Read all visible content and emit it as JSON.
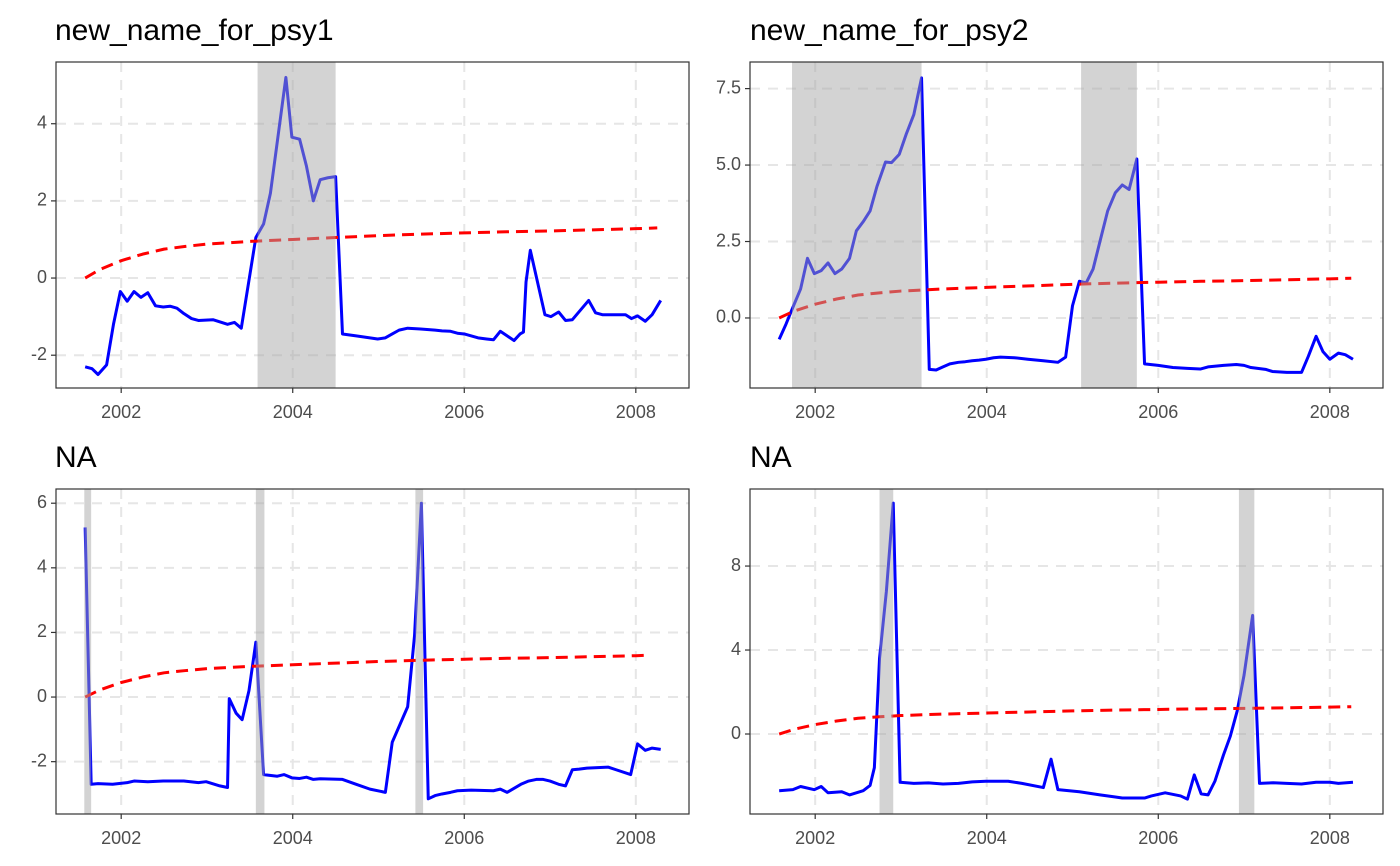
{
  "chart_data": [
    {
      "type": "line",
      "title": "new_name_for_psy1",
      "xlim": [
        2001.24,
        2008.62
      ],
      "xticks": [
        2002,
        2004,
        2006,
        2008
      ],
      "ylim": [
        -2.85,
        5.6
      ],
      "yticks": [
        -2,
        0,
        2,
        4
      ],
      "grid": true,
      "shaded_periods": [
        [
          2003.59,
          2004.5
        ]
      ],
      "series": [
        {
          "color": "#0000ff",
          "linestyle": "solid",
          "x": [
            2001.58,
            2001.66,
            2001.73,
            2001.83,
            2001.91,
            2001.99,
            2002.07,
            2002.15,
            2002.23,
            2002.31,
            2002.4,
            2002.49,
            2002.57,
            2002.65,
            2002.73,
            2002.82,
            2002.9,
            2003.07,
            2003.24,
            2003.32,
            2003.4,
            2003.57,
            2003.66,
            2003.74,
            2003.92,
            2003.99,
            2004.08,
            2004.16,
            2004.24,
            2004.32,
            2004.41,
            2004.5,
            2004.58,
            2004.74,
            2004.9,
            2004.99,
            2005.08,
            2005.16,
            2005.24,
            2005.34,
            2005.49,
            2005.66,
            2005.74,
            2005.84,
            2005.92,
            2006.0,
            2006.16,
            2006.26,
            2006.34,
            2006.42,
            2006.5,
            2006.58,
            2006.65,
            2006.69,
            2006.72,
            2006.77,
            2006.94,
            2007.01,
            2007.1,
            2007.18,
            2007.26,
            2007.45,
            2007.53,
            2007.61,
            2007.88,
            2007.95,
            2008.02,
            2008.11,
            2008.19,
            2008.29
          ],
          "values": [
            -2.3,
            -2.35,
            -2.5,
            -2.25,
            -1.2,
            -0.35,
            -0.6,
            -0.35,
            -0.5,
            -0.38,
            -0.72,
            -0.75,
            -0.73,
            -0.78,
            -0.92,
            -1.05,
            -1.1,
            -1.08,
            -1.2,
            -1.15,
            -1.3,
            1.05,
            1.4,
            2.2,
            5.2,
            3.65,
            3.6,
            2.9,
            2.0,
            2.55,
            2.6,
            2.63,
            -1.45,
            -1.5,
            -1.55,
            -1.58,
            -1.55,
            -1.45,
            -1.35,
            -1.3,
            -1.32,
            -1.35,
            -1.37,
            -1.38,
            -1.43,
            -1.45,
            -1.55,
            -1.58,
            -1.6,
            -1.38,
            -1.5,
            -1.62,
            -1.45,
            -1.4,
            -0.1,
            0.72,
            -0.95,
            -1.0,
            -0.88,
            -1.1,
            -1.08,
            -0.58,
            -0.9,
            -0.95,
            -0.95,
            -1.05,
            -0.98,
            -1.12,
            -0.95,
            -0.58
          ]
        },
        {
          "color": "#ff0000",
          "linestyle": "dashed",
          "x": [
            2001.58,
            2001.75,
            2002,
            2002.25,
            2002.5,
            2002.75,
            2003,
            2003.5,
            2004,
            2004.5,
            2005,
            2005.5,
            2006,
            2006.5,
            2007,
            2007.5,
            2008,
            2008.25
          ],
          "values": [
            0,
            0.22,
            0.45,
            0.62,
            0.75,
            0.82,
            0.88,
            0.95,
            1.0,
            1.05,
            1.1,
            1.14,
            1.17,
            1.2,
            1.22,
            1.25,
            1.28,
            1.3
          ]
        }
      ]
    },
    {
      "type": "line",
      "title": "new_name_for_psy2",
      "xlim": [
        2001.24,
        2008.62
      ],
      "xticks": [
        2002,
        2004,
        2006,
        2008
      ],
      "ylim": [
        -2.29,
        8.37
      ],
      "yticks": [
        {
          "value": 0,
          "label": "0.0"
        },
        2.5,
        {
          "value": 5,
          "label": "5.0"
        },
        7.5
      ],
      "grid": true,
      "shaded_periods": [
        [
          2001.73,
          2003.24
        ],
        [
          2005.1,
          2005.75
        ]
      ],
      "series": [
        {
          "color": "#0000ff",
          "linestyle": "solid",
          "x": [
            2001.58,
            2001.66,
            2001.74,
            2001.83,
            2001.91,
            2001.99,
            2002.07,
            2002.15,
            2002.23,
            2002.31,
            2002.4,
            2002.48,
            2002.56,
            2002.64,
            2002.72,
            2002.82,
            2002.89,
            2002.98,
            2003.06,
            2003.15,
            2003.24,
            2003.33,
            2003.41,
            2003.49,
            2003.57,
            2003.67,
            2003.75,
            2003.83,
            2003.91,
            2003.99,
            2004.08,
            2004.16,
            2004.32,
            2004.48,
            2004.66,
            2004.83,
            2004.92,
            2005.0,
            2005.08,
            2005.16,
            2005.24,
            2005.32,
            2005.41,
            2005.5,
            2005.58,
            2005.66,
            2005.75,
            2005.84,
            2006.0,
            2006.17,
            2006.34,
            2006.49,
            2006.58,
            2006.76,
            2006.91,
            2007.0,
            2007.08,
            2007.25,
            2007.33,
            2007.5,
            2007.67,
            2007.75,
            2007.84,
            2007.92,
            2008.0,
            2008.1,
            2008.18,
            2008.27
          ],
          "values": [
            -0.7,
            -0.2,
            0.35,
            0.95,
            1.95,
            1.45,
            1.55,
            1.8,
            1.45,
            1.6,
            1.95,
            2.85,
            3.15,
            3.5,
            4.3,
            5.1,
            5.08,
            5.35,
            6.0,
            6.65,
            7.85,
            -1.68,
            -1.7,
            -1.6,
            -1.5,
            -1.45,
            -1.43,
            -1.4,
            -1.38,
            -1.35,
            -1.3,
            -1.28,
            -1.3,
            -1.35,
            -1.4,
            -1.45,
            -1.28,
            0.4,
            1.2,
            1.15,
            1.6,
            2.5,
            3.5,
            4.1,
            4.35,
            4.2,
            5.2,
            -1.5,
            -1.55,
            -1.62,
            -1.65,
            -1.67,
            -1.6,
            -1.55,
            -1.52,
            -1.55,
            -1.62,
            -1.68,
            -1.75,
            -1.78,
            -1.78,
            -1.25,
            -0.6,
            -1.1,
            -1.35,
            -1.15,
            -1.2,
            -1.35
          ]
        },
        {
          "color": "#ff0000",
          "linestyle": "dashed",
          "x": [
            2001.58,
            2001.75,
            2002,
            2002.25,
            2002.5,
            2002.75,
            2003,
            2003.5,
            2004,
            2004.5,
            2005,
            2005.5,
            2006,
            2006.5,
            2007,
            2007.5,
            2008,
            2008.25
          ],
          "values": [
            0,
            0.22,
            0.45,
            0.62,
            0.75,
            0.82,
            0.88,
            0.95,
            1.0,
            1.05,
            1.1,
            1.14,
            1.17,
            1.2,
            1.22,
            1.25,
            1.28,
            1.3
          ]
        }
      ]
    },
    {
      "type": "line",
      "title": "NA",
      "xlim": [
        2001.24,
        2008.62
      ],
      "xticks": [
        2002,
        2004,
        2006,
        2008
      ],
      "ylim": [
        -3.62,
        6.44
      ],
      "yticks": [
        -2,
        0,
        2,
        4,
        6
      ],
      "grid": true,
      "shaded_periods": [
        [
          2001.57,
          2001.65
        ],
        [
          2003.57,
          2003.67
        ],
        [
          2005.43,
          2005.52
        ]
      ],
      "series": [
        {
          "color": "#0000ff",
          "linestyle": "solid",
          "x": [
            2001.58,
            2001.65,
            2001.73,
            2001.9,
            2002.07,
            2002.15,
            2002.31,
            2002.49,
            2002.73,
            2002.9,
            2002.99,
            2003.15,
            2003.24,
            2003.26,
            2003.34,
            2003.41,
            2003.49,
            2003.57,
            2003.66,
            2003.82,
            2003.9,
            2003.99,
            2004.08,
            2004.16,
            2004.24,
            2004.32,
            2004.58,
            2004.74,
            2004.9,
            2005.08,
            2005.16,
            2005.34,
            2005.42,
            2005.5,
            2005.58,
            2005.66,
            2005.74,
            2005.84,
            2005.92,
            2006.08,
            2006.34,
            2006.42,
            2006.5,
            2006.66,
            2006.75,
            2006.84,
            2006.92,
            2007.0,
            2007.1,
            2007.18,
            2007.26,
            2007.34,
            2007.43,
            2007.68,
            2007.77,
            2007.94,
            2008.02,
            2008.11,
            2008.19,
            2008.29
          ],
          "values": [
            5.25,
            -2.7,
            -2.68,
            -2.7,
            -2.65,
            -2.6,
            -2.62,
            -2.6,
            -2.6,
            -2.65,
            -2.62,
            -2.75,
            -2.8,
            -0.05,
            -0.5,
            -0.7,
            0.2,
            1.7,
            -2.4,
            -2.45,
            -2.4,
            -2.5,
            -2.52,
            -2.48,
            -2.55,
            -2.53,
            -2.55,
            -2.7,
            -2.85,
            -2.95,
            -1.4,
            -0.3,
            1.9,
            6.0,
            -3.15,
            -3.05,
            -3.0,
            -2.95,
            -2.9,
            -2.88,
            -2.9,
            -2.85,
            -2.95,
            -2.7,
            -2.6,
            -2.55,
            -2.55,
            -2.6,
            -2.7,
            -2.75,
            -2.25,
            -2.23,
            -2.2,
            -2.17,
            -2.25,
            -2.4,
            -1.45,
            -1.65,
            -1.58,
            -1.62
          ]
        },
        {
          "color": "#ff0000",
          "linestyle": "dashed",
          "x": [
            2001.58,
            2001.75,
            2002,
            2002.25,
            2002.5,
            2002.75,
            2003,
            2003.5,
            2004,
            2004.5,
            2005,
            2005.5,
            2006,
            2006.5,
            2007,
            2007.5,
            2008,
            2008.1
          ],
          "values": [
            0,
            0.22,
            0.45,
            0.62,
            0.75,
            0.82,
            0.88,
            0.95,
            1.0,
            1.05,
            1.1,
            1.14,
            1.17,
            1.2,
            1.22,
            1.25,
            1.28,
            1.29
          ]
        }
      ]
    },
    {
      "type": "line",
      "title": "NA",
      "xlim": [
        2001.24,
        2008.62
      ],
      "xticks": [
        2002,
        2004,
        2006,
        2008
      ],
      "ylim": [
        -3.81,
        11.67
      ],
      "yticks": [
        0,
        4,
        8
      ],
      "grid": true,
      "shaded_periods": [
        [
          2002.75,
          2002.91
        ],
        [
          2006.94,
          2007.12
        ]
      ],
      "series": [
        {
          "color": "#0000ff",
          "linestyle": "solid",
          "x": [
            2001.58,
            2001.74,
            2001.83,
            2001.99,
            2002.07,
            2002.15,
            2002.31,
            2002.4,
            2002.56,
            2002.64,
            2002.69,
            2002.75,
            2002.83,
            2002.91,
            2002.99,
            2003.15,
            2003.32,
            2003.49,
            2003.67,
            2003.83,
            2003.99,
            2004.25,
            2004.41,
            2004.66,
            2004.75,
            2004.83,
            2005.08,
            2005.32,
            2005.5,
            2005.58,
            2005.84,
            2005.92,
            2006.08,
            2006.26,
            2006.34,
            2006.42,
            2006.5,
            2006.58,
            2006.66,
            2006.76,
            2006.84,
            2006.92,
            2007.0,
            2007.1,
            2007.18,
            2007.34,
            2007.5,
            2007.67,
            2007.84,
            2008.0,
            2008.1,
            2008.27
          ],
          "values": [
            -2.7,
            -2.65,
            -2.5,
            -2.65,
            -2.5,
            -2.8,
            -2.75,
            -2.9,
            -2.7,
            -2.45,
            -1.6,
            3.6,
            6.8,
            11.0,
            -2.3,
            -2.35,
            -2.33,
            -2.38,
            -2.35,
            -2.28,
            -2.25,
            -2.25,
            -2.35,
            -2.55,
            -1.2,
            -2.65,
            -2.75,
            -2.9,
            -3.0,
            -3.05,
            -3.05,
            -2.95,
            -2.8,
            -2.95,
            -3.1,
            -1.95,
            -2.85,
            -2.9,
            -2.25,
            -1.0,
            -0.1,
            1.1,
            2.8,
            5.65,
            -2.35,
            -2.32,
            -2.35,
            -2.38,
            -2.3,
            -2.3,
            -2.35,
            -2.3
          ]
        },
        {
          "color": "#ff0000",
          "linestyle": "dashed",
          "x": [
            2001.58,
            2001.75,
            2002,
            2002.25,
            2002.5,
            2002.75,
            2003,
            2003.5,
            2004,
            2004.5,
            2005,
            2005.5,
            2006,
            2006.5,
            2007,
            2007.5,
            2008,
            2008.25
          ],
          "values": [
            0,
            0.22,
            0.45,
            0.62,
            0.75,
            0.82,
            0.88,
            0.95,
            1.0,
            1.05,
            1.1,
            1.14,
            1.17,
            1.2,
            1.22,
            1.25,
            1.28,
            1.3
          ]
        }
      ]
    }
  ]
}
